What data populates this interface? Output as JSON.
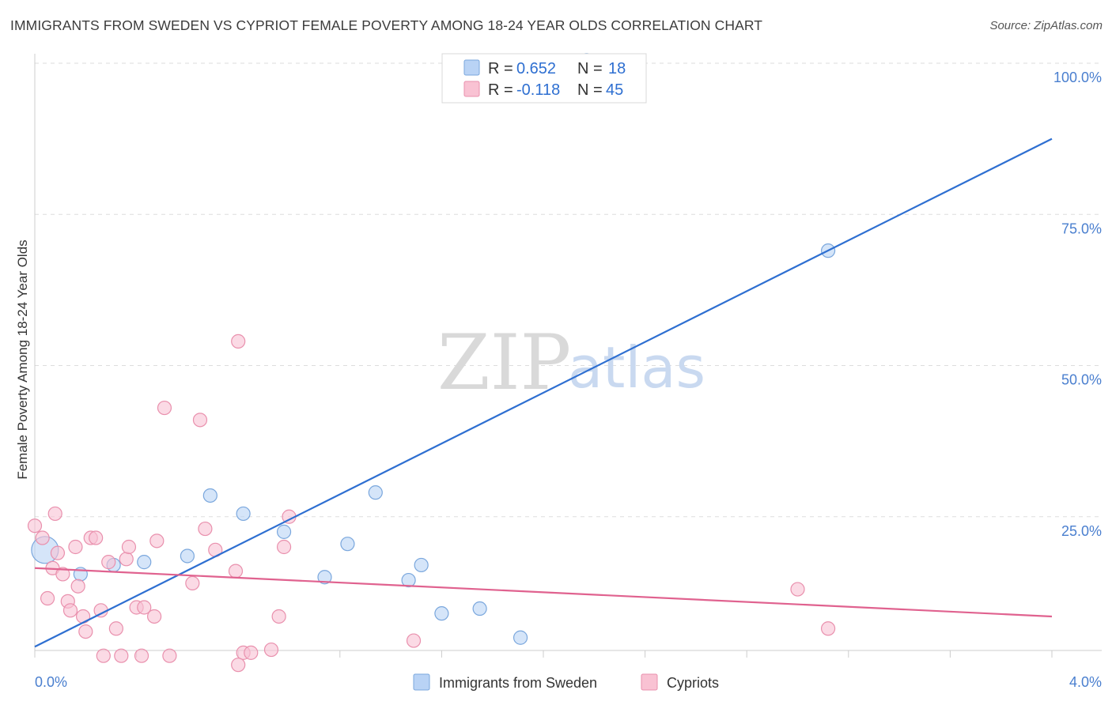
{
  "header": {
    "title": "IMMIGRANTS FROM SWEDEN VS CYPRIOT FEMALE POVERTY AMONG 18-24 YEAR OLDS CORRELATION CHART",
    "source": "Source: ZipAtlas.com"
  },
  "watermark": {
    "zip": "ZIP",
    "atlas": "atlas"
  },
  "colors": {
    "sweden_fill": "#b9d3f5",
    "sweden_stroke": "#7aa7dd",
    "sweden_line": "#2e6fd1",
    "cyprus_fill": "#f9c2d3",
    "cyprus_stroke": "#e990ad",
    "cyprus_line": "#e0628f",
    "grid": "#dddddd",
    "tick_label": "#4a7fcf"
  },
  "legend": {
    "rows": [
      {
        "r_label": "R = ",
        "r_value": "0.652",
        "n_label": "N = ",
        "n_value": "18"
      },
      {
        "r_label": "R = ",
        "r_value": "-0.118",
        "n_label": "N = ",
        "n_value": "45"
      }
    ]
  },
  "chart_data": {
    "type": "scatter",
    "title": "IMMIGRANTS FROM SWEDEN VS CYPRIOT FEMALE POVERTY AMONG 18-24 YEAR OLDS CORRELATION CHART",
    "xlabel": "",
    "ylabel": "Female Poverty Among 18-24 Year Olds",
    "xlim": [
      0,
      4
    ],
    "ylim": [
      0,
      100
    ],
    "x_tick_labels": [
      "0.0%",
      "4.0%"
    ],
    "y_ticks": [
      25,
      50,
      75,
      100
    ],
    "y_tick_labels": [
      "25.0%",
      "50.0%",
      "75.0%",
      "100.0%"
    ],
    "grid": "horizontal dashed",
    "legend_position": "bottom",
    "series": [
      {
        "name": "Immigrants from Sweden",
        "trend": {
          "x": [
            0,
            4
          ],
          "y": [
            3.5,
            87.5
          ]
        },
        "points": [
          {
            "x": 0.04,
            "y": 19.5,
            "big": true
          },
          {
            "x": 0.18,
            "y": 15.5
          },
          {
            "x": 0.31,
            "y": 17
          },
          {
            "x": 0.43,
            "y": 17.5
          },
          {
            "x": 0.6,
            "y": 18.5
          },
          {
            "x": 0.69,
            "y": 28.5
          },
          {
            "x": 0.82,
            "y": 25.5
          },
          {
            "x": 0.98,
            "y": 22.5
          },
          {
            "x": 1.14,
            "y": 15
          },
          {
            "x": 1.23,
            "y": 20.5
          },
          {
            "x": 1.34,
            "y": 29
          },
          {
            "x": 1.47,
            "y": 14.5
          },
          {
            "x": 1.6,
            "y": 9
          },
          {
            "x": 1.75,
            "y": 9.8
          },
          {
            "x": 1.91,
            "y": 5
          },
          {
            "x": 2.17,
            "y": 100.5
          },
          {
            "x": 3.12,
            "y": 69
          },
          {
            "x": 1.52,
            "y": 17
          }
        ]
      },
      {
        "name": "Cypriots",
        "trend": {
          "x": [
            0,
            4
          ],
          "y": [
            16.5,
            8.5
          ]
        },
        "points": [
          {
            "x": 0.0,
            "y": 23.5
          },
          {
            "x": 0.03,
            "y": 21.5
          },
          {
            "x": 0.05,
            "y": 11.5
          },
          {
            "x": 0.07,
            "y": 16.5
          },
          {
            "x": 0.08,
            "y": 25.5
          },
          {
            "x": 0.09,
            "y": 19
          },
          {
            "x": 0.11,
            "y": 15.5
          },
          {
            "x": 0.13,
            "y": 11
          },
          {
            "x": 0.14,
            "y": 9.5
          },
          {
            "x": 0.16,
            "y": 20
          },
          {
            "x": 0.17,
            "y": 13.5
          },
          {
            "x": 0.19,
            "y": 8.5
          },
          {
            "x": 0.2,
            "y": 6
          },
          {
            "x": 0.22,
            "y": 21.5
          },
          {
            "x": 0.24,
            "y": 21.5
          },
          {
            "x": 0.26,
            "y": 9.5
          },
          {
            "x": 0.27,
            "y": 2
          },
          {
            "x": 0.29,
            "y": 17.5
          },
          {
            "x": 0.32,
            "y": 6.5
          },
          {
            "x": 0.34,
            "y": 2
          },
          {
            "x": 0.36,
            "y": 18
          },
          {
            "x": 0.37,
            "y": 20
          },
          {
            "x": 0.4,
            "y": 10
          },
          {
            "x": 0.42,
            "y": 2
          },
          {
            "x": 0.43,
            "y": 10
          },
          {
            "x": 0.47,
            "y": 8.5
          },
          {
            "x": 0.48,
            "y": 21
          },
          {
            "x": 0.51,
            "y": 43
          },
          {
            "x": 0.62,
            "y": 14
          },
          {
            "x": 0.65,
            "y": 41
          },
          {
            "x": 0.67,
            "y": 23
          },
          {
            "x": 0.71,
            "y": 19.5
          },
          {
            "x": 0.79,
            "y": 16
          },
          {
            "x": 0.8,
            "y": 54
          },
          {
            "x": 0.82,
            "y": 2.5
          },
          {
            "x": 0.85,
            "y": 2.5
          },
          {
            "x": 0.8,
            "y": 0.5
          },
          {
            "x": 0.93,
            "y": 3
          },
          {
            "x": 0.96,
            "y": 8.5
          },
          {
            "x": 0.98,
            "y": 20
          },
          {
            "x": 1.0,
            "y": 25
          },
          {
            "x": 1.49,
            "y": 4.5
          },
          {
            "x": 3.0,
            "y": 13
          },
          {
            "x": 3.12,
            "y": 6.5
          },
          {
            "x": 0.53,
            "y": 2
          }
        ]
      }
    ]
  }
}
